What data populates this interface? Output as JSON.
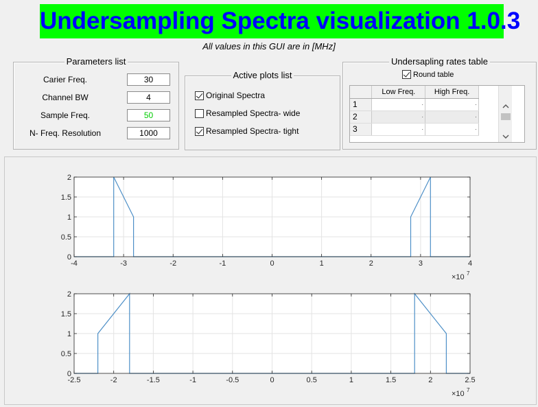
{
  "app": {
    "title": "Undersampling Spectra visualization 1.0.3",
    "subtitle": "All values in this GUI are in [MHz]"
  },
  "parameters": {
    "title": "Parameters list",
    "fields": [
      {
        "label": "Carier Freq.",
        "value": "30",
        "color": "#000000"
      },
      {
        "label": "Channel BW",
        "value": "4",
        "color": "#000000"
      },
      {
        "label": "Sample Freq.",
        "value": "50",
        "color": "#00cc00"
      },
      {
        "label": "N- Freq. Resolution",
        "value": "1000",
        "color": "#000000"
      }
    ]
  },
  "active_plots": {
    "title": "Active plots list",
    "items": [
      {
        "label": "Original Spectra",
        "checked": true
      },
      {
        "label": "Resampled Spectra- wide",
        "checked": false
      },
      {
        "label": "Resampled Spectra- tight",
        "checked": true
      }
    ]
  },
  "rates_table": {
    "title": "Undersapling rates table",
    "round_label": "Round table",
    "round_checked": true,
    "columns": [
      "Low Freq.",
      "High Freq."
    ],
    "rows": [
      {
        "index": "1",
        "low": "·",
        "high": "·"
      },
      {
        "index": "2",
        "low": "·",
        "high": "·"
      },
      {
        "index": "3",
        "low": "·",
        "high": "·"
      }
    ]
  },
  "icons": {
    "scroll_up": "chevron-up-icon",
    "scroll_down": "chevron-down-icon"
  },
  "chart_data": [
    {
      "type": "line",
      "xlim": [
        -40000000,
        40000000
      ],
      "ylim": [
        0,
        2
      ],
      "xticks": [
        -4,
        -3,
        -2,
        -1,
        0,
        1,
        2,
        3,
        4
      ],
      "xtick_labels": [
        "-4",
        "-3",
        "-2",
        "-1",
        "0",
        "1",
        "2",
        "3",
        "4"
      ],
      "yticks": [
        0,
        0.5,
        1,
        1.5,
        2
      ],
      "ytick_labels": [
        "0",
        "0.5",
        "1",
        "1.5",
        "2"
      ],
      "exponent_label": "×10",
      "exponent": "7",
      "grid": true,
      "line_color": "#4d8fc7",
      "x": [
        -40000000,
        -32000000,
        -32000000,
        -28000000,
        -28000000,
        28000000,
        28000000,
        32000000,
        32000000,
        40000000
      ],
      "y": [
        0,
        0,
        2,
        1,
        0,
        0,
        1,
        2,
        0,
        0
      ]
    },
    {
      "type": "line",
      "xlim": [
        -25000000,
        25000000
      ],
      "ylim": [
        0,
        2
      ],
      "xticks": [
        -2.5,
        -2,
        -1.5,
        -1,
        -0.5,
        0,
        0.5,
        1,
        1.5,
        2,
        2.5
      ],
      "xtick_labels": [
        "-2.5",
        "-2",
        "-1.5",
        "-1",
        "-0.5",
        "0",
        "0.5",
        "1",
        "1.5",
        "2",
        "2.5"
      ],
      "yticks": [
        0,
        0.5,
        1,
        1.5,
        2
      ],
      "ytick_labels": [
        "0",
        "0.5",
        "1",
        "1.5",
        "2"
      ],
      "exponent_label": "×10",
      "exponent": "7",
      "grid": true,
      "line_color": "#4d8fc7",
      "x": [
        -25000000,
        -22000000,
        -22000000,
        -18000000,
        -18000000,
        18000000,
        18000000,
        22000000,
        22000000,
        25000000
      ],
      "y": [
        0,
        0,
        1,
        2,
        0,
        0,
        2,
        1,
        0,
        0
      ]
    }
  ]
}
